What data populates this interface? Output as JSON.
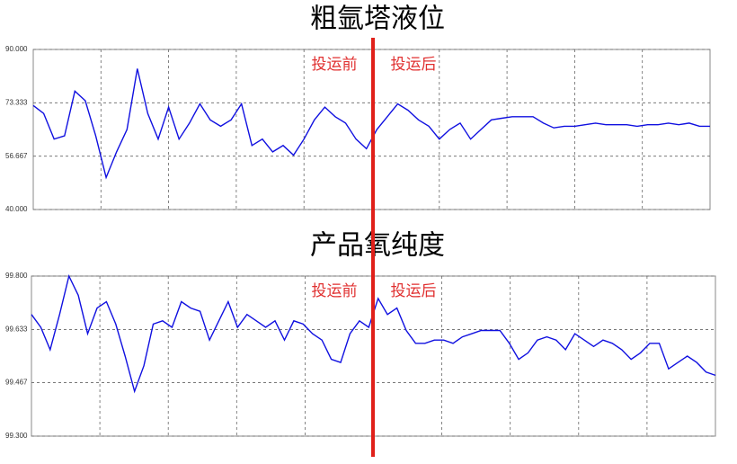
{
  "chart_data": [
    {
      "type": "line",
      "title": "粗氩塔液位",
      "color": "#1010e0",
      "annotations": [
        "投运前",
        "投运后"
      ],
      "values": [
        72.5,
        70,
        62,
        63,
        77,
        74,
        63,
        50,
        58,
        65,
        84,
        70,
        62,
        72,
        62,
        67,
        73,
        68,
        66,
        68,
        73,
        60,
        62,
        58,
        60,
        57,
        62,
        68,
        72,
        69,
        67,
        62,
        59,
        65,
        69,
        73,
        71,
        68,
        66,
        62,
        65,
        67,
        62,
        65,
        68,
        68.5,
        69,
        69,
        69,
        67,
        65.5,
        66,
        66,
        66.5,
        67,
        66.5,
        66.5,
        66.5,
        66,
        66.5,
        66.5,
        67,
        66.5,
        67,
        66,
        66
      ],
      "ylim": [
        40,
        90
      ],
      "yticks": [
        {
          "value": 40,
          "label": "40.000"
        },
        {
          "value": 56.667,
          "label": "56.667"
        },
        {
          "value": 73.333,
          "label": "73.333"
        },
        {
          "value": 90,
          "label": "90.000"
        }
      ],
      "grid": true
    },
    {
      "type": "line",
      "title": "产品氧纯度",
      "color": "#1010e0",
      "annotations": [
        "投运前",
        "投运后"
      ],
      "values": [
        99.68,
        99.64,
        99.57,
        99.68,
        99.8,
        99.74,
        99.62,
        99.7,
        99.72,
        99.65,
        99.55,
        99.44,
        99.52,
        99.65,
        99.66,
        99.64,
        99.72,
        99.7,
        99.69,
        99.6,
        99.66,
        99.72,
        99.64,
        99.68,
        99.66,
        99.64,
        99.66,
        99.6,
        99.66,
        99.65,
        99.62,
        99.6,
        99.54,
        99.53,
        99.62,
        99.66,
        99.64,
        99.73,
        99.68,
        99.7,
        99.63,
        99.59,
        99.59,
        99.6,
        99.6,
        99.59,
        99.61,
        99.62,
        99.63,
        99.63,
        99.63,
        99.59,
        99.54,
        99.56,
        99.6,
        99.61,
        99.6,
        99.57,
        99.62,
        99.6,
        99.58,
        99.6,
        99.59,
        99.57,
        99.54,
        99.56,
        99.59,
        99.59,
        99.51,
        99.53,
        99.55,
        99.53,
        99.5,
        99.49
      ],
      "ylim": [
        99.3,
        99.8
      ],
      "yticks": [
        {
          "value": 99.3,
          "label": "99.300"
        },
        {
          "value": 99.467,
          "label": "99.467"
        },
        {
          "value": 99.633,
          "label": "99.633"
        },
        {
          "value": 99.8,
          "label": "99.800"
        }
      ],
      "grid": true
    }
  ]
}
